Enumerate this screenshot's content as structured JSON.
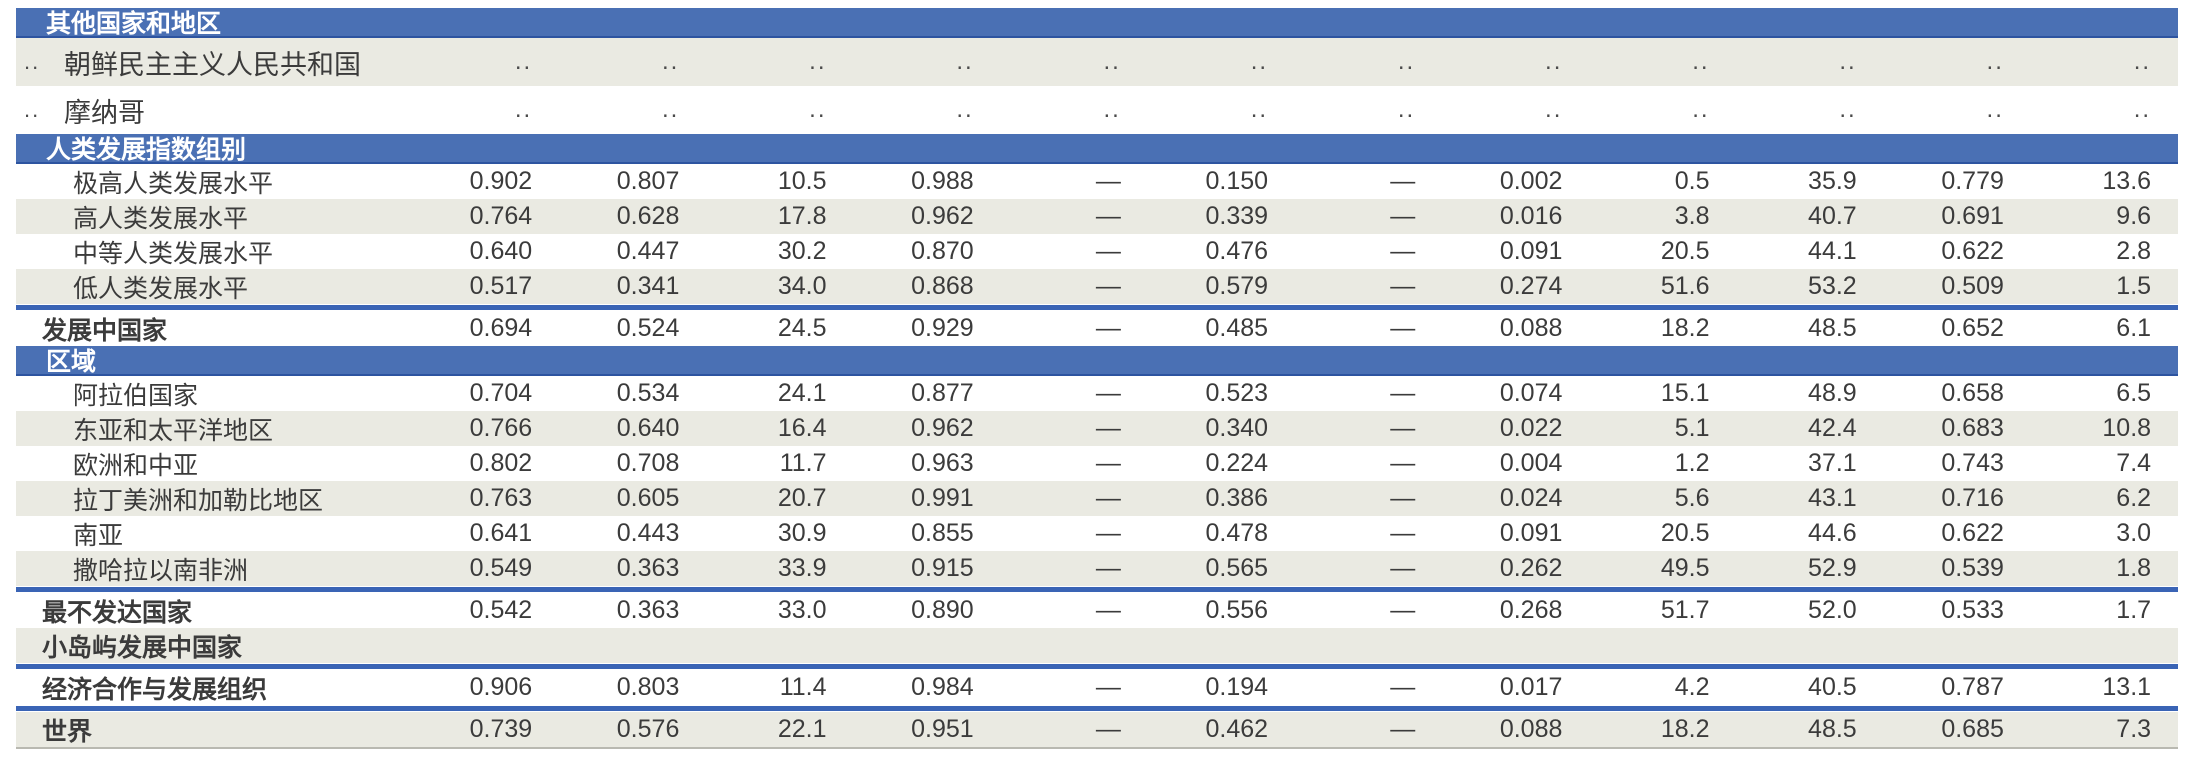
{
  "colors": {
    "header_bg": "#4a70b4",
    "header_border": "#2d54a0",
    "shade_row": "#eaeae2",
    "separator": "#3a64b5",
    "text": "#3b3b3b",
    "bottom_border": "#b9b9b1"
  },
  "table": {
    "sections": [
      {
        "header": "其他国家和地区",
        "rows": [
          {
            "rank": "..",
            "label": "朝鲜民主主义人民共和国",
            "indent": 1,
            "bold": false,
            "tall": true,
            "shade": true,
            "line_below": false,
            "values": [
              "..",
              "..",
              "..",
              "..",
              "..",
              "..",
              "..",
              "..",
              "..",
              "..",
              "..",
              ".."
            ]
          },
          {
            "rank": "..",
            "label": "摩纳哥",
            "indent": 1,
            "bold": false,
            "tall": true,
            "shade": false,
            "line_below": false,
            "values": [
              "..",
              "..",
              "..",
              "..",
              "..",
              "..",
              "..",
              "..",
              "..",
              "..",
              "..",
              ".."
            ]
          }
        ]
      },
      {
        "header": "人类发展指数组别",
        "rows": [
          {
            "rank": "",
            "label": "极高人类发展水平",
            "indent": 1,
            "bold": false,
            "tall": false,
            "shade": false,
            "line_below": false,
            "values": [
              "0.902",
              "0.807",
              "10.5",
              "0.988",
              "—",
              "0.150",
              "—",
              "0.002",
              "0.5",
              "35.9",
              "0.779",
              "13.6"
            ]
          },
          {
            "rank": "",
            "label": "高人类发展水平",
            "indent": 1,
            "bold": false,
            "tall": false,
            "shade": true,
            "line_below": false,
            "values": [
              "0.764",
              "0.628",
              "17.8",
              "0.962",
              "—",
              "0.339",
              "—",
              "0.016",
              "3.8",
              "40.7",
              "0.691",
              "9.6"
            ]
          },
          {
            "rank": "",
            "label": "中等人类发展水平",
            "indent": 1,
            "bold": false,
            "tall": false,
            "shade": false,
            "line_below": false,
            "values": [
              "0.640",
              "0.447",
              "30.2",
              "0.870",
              "—",
              "0.476",
              "—",
              "0.091",
              "20.5",
              "44.1",
              "0.622",
              "2.8"
            ]
          },
          {
            "rank": "",
            "label": "低人类发展水平",
            "indent": 1,
            "bold": false,
            "tall": false,
            "shade": true,
            "line_below": true,
            "values": [
              "0.517",
              "0.341",
              "34.0",
              "0.868",
              "—",
              "0.579",
              "—",
              "0.274",
              "51.6",
              "53.2",
              "0.509",
              "1.5"
            ]
          },
          {
            "rank": "",
            "label": "发展中国家",
            "indent": 0,
            "bold": true,
            "tall": false,
            "shade": false,
            "line_below": false,
            "values": [
              "0.694",
              "0.524",
              "24.5",
              "0.929",
              "—",
              "0.485",
              "—",
              "0.088",
              "18.2",
              "48.5",
              "0.652",
              "6.1"
            ]
          }
        ]
      },
      {
        "header": "区域",
        "rows": [
          {
            "rank": "",
            "label": "阿拉伯国家",
            "indent": 1,
            "bold": false,
            "tall": false,
            "shade": false,
            "line_below": false,
            "values": [
              "0.704",
              "0.534",
              "24.1",
              "0.877",
              "—",
              "0.523",
              "—",
              "0.074",
              "15.1",
              "48.9",
              "0.658",
              "6.5"
            ]
          },
          {
            "rank": "",
            "label": "东亚和太平洋地区",
            "indent": 1,
            "bold": false,
            "tall": false,
            "shade": true,
            "line_below": false,
            "values": [
              "0.766",
              "0.640",
              "16.4",
              "0.962",
              "—",
              "0.340",
              "—",
              "0.022",
              "5.1",
              "42.4",
              "0.683",
              "10.8"
            ]
          },
          {
            "rank": "",
            "label": "欧洲和中亚",
            "indent": 1,
            "bold": false,
            "tall": false,
            "shade": false,
            "line_below": false,
            "values": [
              "0.802",
              "0.708",
              "11.7",
              "0.963",
              "—",
              "0.224",
              "—",
              "0.004",
              "1.2",
              "37.1",
              "0.743",
              "7.4"
            ]
          },
          {
            "rank": "",
            "label": "拉丁美洲和加勒比地区",
            "indent": 1,
            "bold": false,
            "tall": false,
            "shade": true,
            "line_below": false,
            "values": [
              "0.763",
              "0.605",
              "20.7",
              "0.991",
              "—",
              "0.386",
              "—",
              "0.024",
              "5.6",
              "43.1",
              "0.716",
              "6.2"
            ]
          },
          {
            "rank": "",
            "label": "南亚",
            "indent": 1,
            "bold": false,
            "tall": false,
            "shade": false,
            "line_below": false,
            "values": [
              "0.641",
              "0.443",
              "30.9",
              "0.855",
              "—",
              "0.478",
              "—",
              "0.091",
              "20.5",
              "44.6",
              "0.622",
              "3.0"
            ]
          },
          {
            "rank": "",
            "label": "撒哈拉以南非洲",
            "indent": 1,
            "bold": false,
            "tall": false,
            "shade": true,
            "line_below": true,
            "values": [
              "0.549",
              "0.363",
              "33.9",
              "0.915",
              "—",
              "0.565",
              "—",
              "0.262",
              "49.5",
              "52.9",
              "0.539",
              "1.8"
            ]
          },
          {
            "rank": "",
            "label": "最不发达国家",
            "indent": 0,
            "bold": true,
            "tall": false,
            "shade": false,
            "line_below": false,
            "values": [
              "0.542",
              "0.363",
              "33.0",
              "0.890",
              "—",
              "0.556",
              "—",
              "0.268",
              "51.7",
              "52.0",
              "0.533",
              "1.7"
            ]
          },
          {
            "rank": "",
            "label": "小岛屿发展中国家",
            "indent": 0,
            "bold": true,
            "tall": false,
            "shade": true,
            "line_below": true,
            "values": [
              "",
              "",
              "",
              "",
              "",
              "",
              "",
              "",
              "",
              "",
              "",
              ""
            ]
          },
          {
            "rank": "",
            "label": "经济合作与发展组织",
            "indent": 0,
            "bold": true,
            "tall": false,
            "shade": false,
            "line_below": true,
            "values": [
              "0.906",
              "0.803",
              "11.4",
              "0.984",
              "—",
              "0.194",
              "—",
              "0.017",
              "4.2",
              "40.5",
              "0.787",
              "13.1"
            ]
          },
          {
            "rank": "",
            "label": "世界",
            "indent": 0,
            "bold": true,
            "tall": false,
            "shade": true,
            "line_below": false,
            "values": [
              "0.739",
              "0.576",
              "22.1",
              "0.951",
              "—",
              "0.462",
              "—",
              "0.088",
              "18.2",
              "48.5",
              "0.685",
              "7.3"
            ]
          }
        ]
      }
    ]
  },
  "chart_data": {
    "type": "table",
    "title": "人类发展指数汇总表（其他国家和地区 / 人类发展指数组别 / 区域）",
    "columns_per_row": 12,
    "missing_marker": "..",
    "not_applicable_marker": "—",
    "rows": [
      {
        "label": "朝鲜民主主义人民共和国",
        "values": [
          "..",
          "..",
          "..",
          "..",
          "..",
          "..",
          "..",
          "..",
          "..",
          "..",
          "..",
          ".."
        ]
      },
      {
        "label": "摩纳哥",
        "values": [
          "..",
          "..",
          "..",
          "..",
          "..",
          "..",
          "..",
          "..",
          "..",
          "..",
          "..",
          ".."
        ]
      },
      {
        "label": "极高人类发展水平",
        "values": [
          0.902,
          0.807,
          10.5,
          0.988,
          null,
          0.15,
          null,
          0.002,
          0.5,
          35.9,
          0.779,
          13.6
        ]
      },
      {
        "label": "高人类发展水平",
        "values": [
          0.764,
          0.628,
          17.8,
          0.962,
          null,
          0.339,
          null,
          0.016,
          3.8,
          40.7,
          0.691,
          9.6
        ]
      },
      {
        "label": "中等人类发展水平",
        "values": [
          0.64,
          0.447,
          30.2,
          0.87,
          null,
          0.476,
          null,
          0.091,
          20.5,
          44.1,
          0.622,
          2.8
        ]
      },
      {
        "label": "低人类发展水平",
        "values": [
          0.517,
          0.341,
          34.0,
          0.868,
          null,
          0.579,
          null,
          0.274,
          51.6,
          53.2,
          0.509,
          1.5
        ]
      },
      {
        "label": "发展中国家",
        "values": [
          0.694,
          0.524,
          24.5,
          0.929,
          null,
          0.485,
          null,
          0.088,
          18.2,
          48.5,
          0.652,
          6.1
        ]
      },
      {
        "label": "阿拉伯国家",
        "values": [
          0.704,
          0.534,
          24.1,
          0.877,
          null,
          0.523,
          null,
          0.074,
          15.1,
          48.9,
          0.658,
          6.5
        ]
      },
      {
        "label": "东亚和太平洋地区",
        "values": [
          0.766,
          0.64,
          16.4,
          0.962,
          null,
          0.34,
          null,
          0.022,
          5.1,
          42.4,
          0.683,
          10.8
        ]
      },
      {
        "label": "欧洲和中亚",
        "values": [
          0.802,
          0.708,
          11.7,
          0.963,
          null,
          0.224,
          null,
          0.004,
          1.2,
          37.1,
          0.743,
          7.4
        ]
      },
      {
        "label": "拉丁美洲和加勒比地区",
        "values": [
          0.763,
          0.605,
          20.7,
          0.991,
          null,
          0.386,
          null,
          0.024,
          5.6,
          43.1,
          0.716,
          6.2
        ]
      },
      {
        "label": "南亚",
        "values": [
          0.641,
          0.443,
          30.9,
          0.855,
          null,
          0.478,
          null,
          0.091,
          20.5,
          44.6,
          0.622,
          3.0
        ]
      },
      {
        "label": "撒哈拉以南非洲",
        "values": [
          0.549,
          0.363,
          33.9,
          0.915,
          null,
          0.565,
          null,
          0.262,
          49.5,
          52.9,
          0.539,
          1.8
        ]
      },
      {
        "label": "最不发达国家",
        "values": [
          0.542,
          0.363,
          33.0,
          0.89,
          null,
          0.556,
          null,
          0.268,
          51.7,
          52.0,
          0.533,
          1.7
        ]
      },
      {
        "label": "小岛屿发展中国家",
        "values": [
          null,
          null,
          null,
          null,
          null,
          null,
          null,
          null,
          null,
          null,
          null,
          null
        ]
      },
      {
        "label": "经济合作与发展组织",
        "values": [
          0.906,
          0.803,
          11.4,
          0.984,
          null,
          0.194,
          null,
          0.017,
          4.2,
          40.5,
          0.787,
          13.1
        ]
      },
      {
        "label": "世界",
        "values": [
          0.739,
          0.576,
          22.1,
          0.951,
          null,
          0.462,
          null,
          0.088,
          18.2,
          48.5,
          0.685,
          7.3
        ]
      }
    ]
  }
}
